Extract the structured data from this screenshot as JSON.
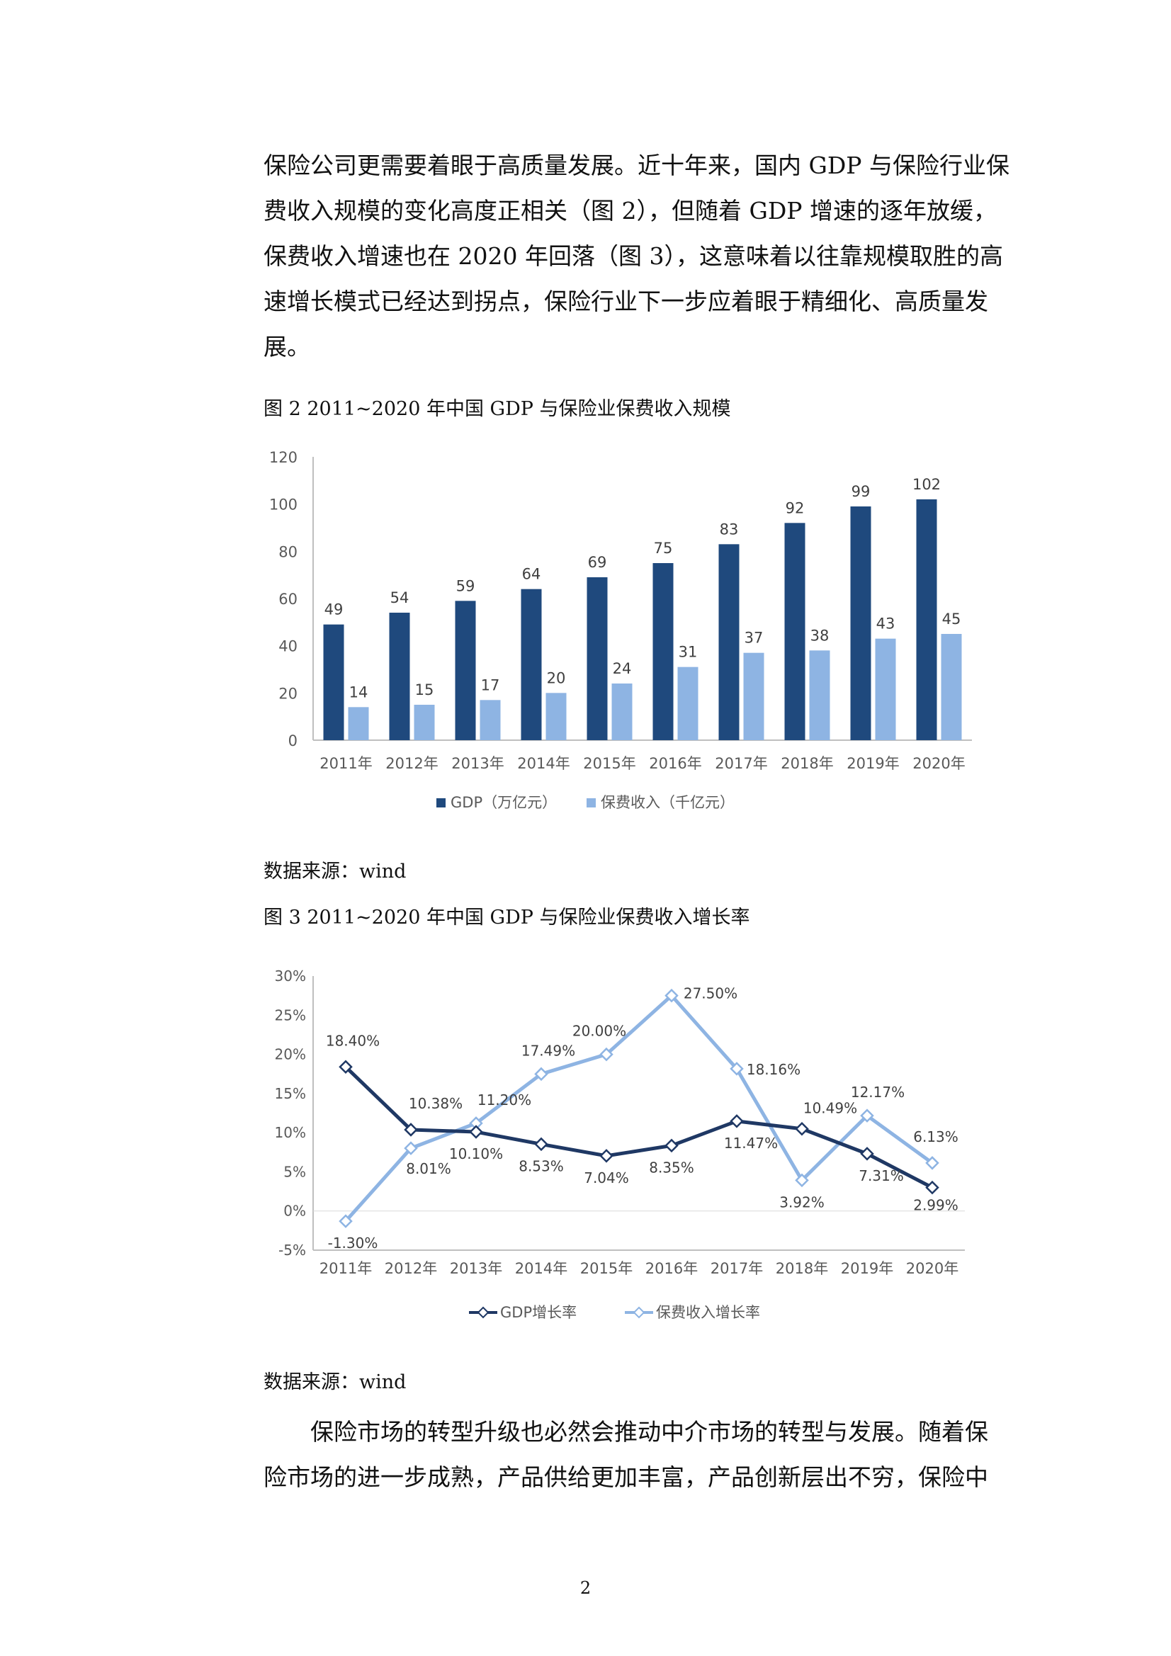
{
  "paragraph1": {
    "lines": [
      "保险公司更需要着眼于高质量发展。近十年来，国内 GDP 与保险行业保",
      "费收入规模的变化高度正相关（图 2），但随着 GDP 增速的逐年放缓，",
      "保费收入增速也在 2020 年回落（图 3），这意味着以往靠规模取胜的高",
      "速增长模式已经达到拐点，保险行业下一步应着眼于精细化、高质量发",
      "展。"
    ]
  },
  "figure2": {
    "caption": "图 2    2011~2020 年中国 GDP 与保险业保费收入规模",
    "source": "数据来源：wind"
  },
  "figure3": {
    "caption": "图 3 2011~2020 年中国 GDP 与保险业保费收入增长率",
    "source": "数据来源：wind"
  },
  "paragraph2": {
    "lines": [
      "保险市场的转型升级也必然会推动中介市场的转型与发展。随着保",
      "险市场的进一步成熟，产品供给更加丰富，产品创新层出不穷，保险中"
    ]
  },
  "page_number": "2",
  "chart_data": [
    {
      "type": "bar",
      "categories": [
        "2011年",
        "2012年",
        "2013年",
        "2014年",
        "2015年",
        "2016年",
        "2017年",
        "2018年",
        "2019年",
        "2020年"
      ],
      "series": [
        {
          "name": "GDP（万亿元）",
          "values": [
            49,
            54,
            59,
            64,
            69,
            75,
            83,
            92,
            99,
            102
          ],
          "color": "#1F497D"
        },
        {
          "name": "保费收入（千亿元）",
          "values": [
            14,
            15,
            17,
            20,
            24,
            31,
            37,
            38,
            43,
            45
          ],
          "color": "#8EB4E3"
        }
      ],
      "ylim": [
        0,
        120
      ],
      "yticks": [
        0,
        20,
        40,
        60,
        80,
        100,
        120
      ],
      "data_labels": true,
      "grid": false,
      "legend": "bottom"
    },
    {
      "type": "line",
      "categories": [
        "2011年",
        "2012年",
        "2013年",
        "2014年",
        "2015年",
        "2016年",
        "2017年",
        "2018年",
        "2019年",
        "2020年"
      ],
      "series": [
        {
          "name": "GDP增长率",
          "values": [
            18.4,
            10.38,
            10.1,
            8.53,
            7.04,
            8.35,
            11.47,
            10.49,
            7.31,
            2.99
          ],
          "labels": [
            "18.40%",
            "10.38%",
            "10.10%",
            "8.53%",
            "7.04%",
            "8.35%",
            "11.47%",
            "10.49%",
            "7.31%",
            "2.99%"
          ],
          "color": "#1F3864"
        },
        {
          "name": "保费收入增长率",
          "values": [
            -1.3,
            8.01,
            11.2,
            17.49,
            20.0,
            27.5,
            18.16,
            3.92,
            12.17,
            6.13
          ],
          "labels": [
            "-1.30%",
            "8.01%",
            "11.20%",
            "17.49%",
            "20.00%",
            "27.50%",
            "18.16%",
            "3.92%",
            "12.17%",
            "6.13%"
          ],
          "color": "#8EB4E3"
        }
      ],
      "ylim": [
        -5,
        30
      ],
      "yticks": [
        -5,
        0,
        5,
        10,
        15,
        20,
        25,
        30
      ],
      "ytick_labels": [
        "-5%",
        "0%",
        "5%",
        "10%",
        "15%",
        "20%",
        "25%",
        "30%"
      ],
      "markers": "diamond",
      "data_labels": true,
      "grid": false,
      "legend": "bottom"
    }
  ]
}
